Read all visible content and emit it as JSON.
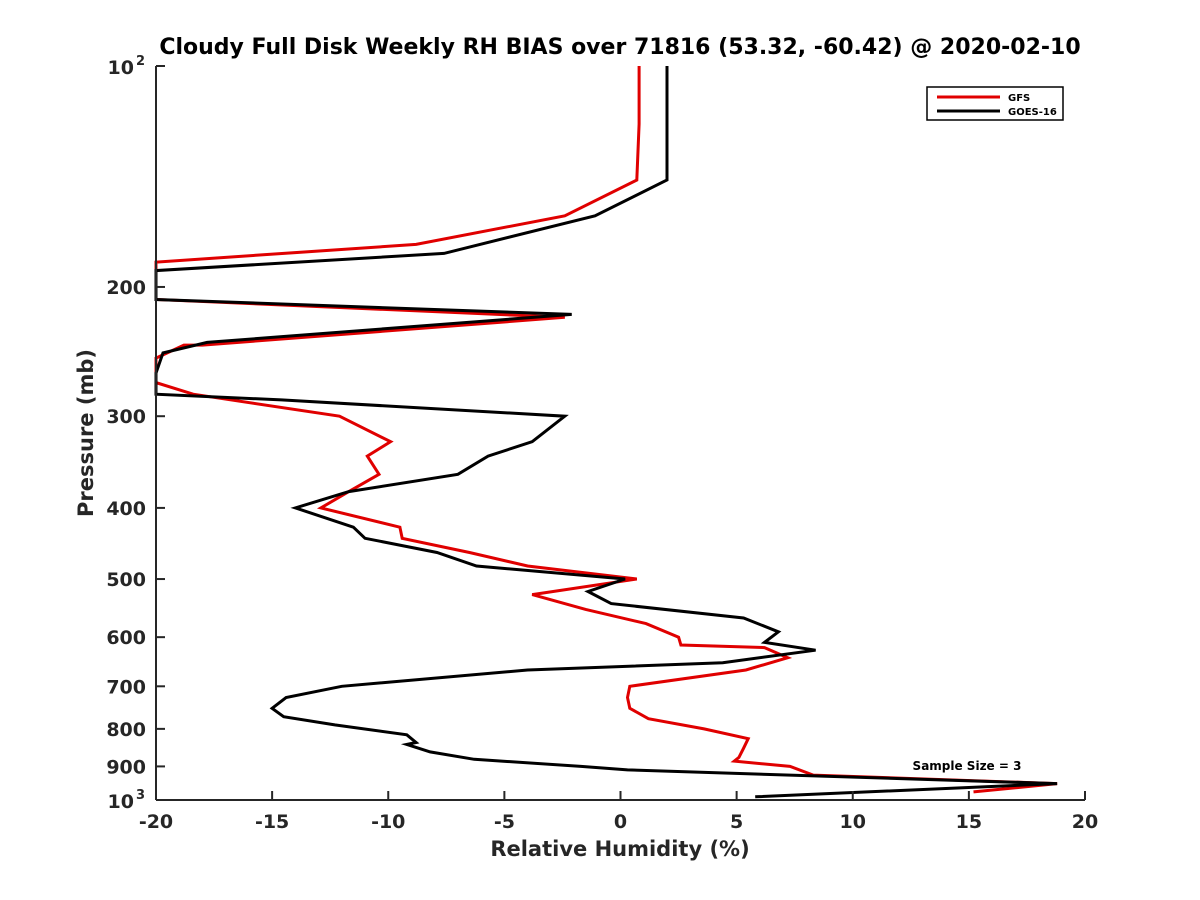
{
  "chart_data": {
    "type": "line",
    "title": "Cloudy Full Disk Weekly RH BIAS over 71816 (53.32, -60.42) @ 2020-02-10",
    "xlabel": "Relative Humidity (%)",
    "ylabel": "Pressure (mb)",
    "xlim": [
      -20,
      20
    ],
    "ylim": [
      100,
      1000
    ],
    "y_scale": "log",
    "y_reversed": true,
    "grid": false,
    "x_ticks": [
      -20,
      -15,
      -10,
      -5,
      0,
      5,
      10,
      15,
      20
    ],
    "x_tick_labels": [
      "-20",
      "-15",
      "-10",
      "-5",
      "0",
      "5",
      "10",
      "15",
      "20"
    ],
    "y_ticks": [
      200,
      300,
      400,
      500,
      600,
      700,
      800,
      900
    ],
    "y_tick_labels": [
      "200",
      "300",
      "400",
      "500",
      "600",
      "700",
      "800",
      "900"
    ],
    "y_end_labels": {
      "top_base": "10",
      "top_exp": "2",
      "bottom_base": "10",
      "bottom_exp": "3"
    },
    "legend": {
      "position": "top-right"
    },
    "annotation": "Sample Size = 3",
    "series": [
      {
        "name": "GFS",
        "color": "#e00000",
        "x": [
          0.8,
          0.8,
          0.7,
          -2.4,
          -8.8,
          -20.0,
          -20.0,
          -2.4,
          -18.0,
          -18.8,
          -20.0,
          -20.0,
          -18.4,
          -12.1,
          -9.9,
          -10.9,
          -10.4,
          -11.7,
          -12.9,
          -9.5,
          -9.4,
          -6.5,
          -4.0,
          0.7,
          -3.8,
          -1.5,
          1.1,
          2.5,
          2.6,
          6.2,
          7.2,
          5.4,
          0.4,
          0.3,
          0.4,
          1.2,
          3.6,
          5.5,
          5.3,
          5.1,
          4.9,
          7.3,
          8.3,
          18.8,
          15.2
        ],
        "y": [
          100,
          120,
          143,
          160,
          175,
          185,
          208,
          220,
          240,
          240,
          250,
          270,
          280,
          300,
          325,
          340,
          360,
          380,
          400,
          425,
          440,
          460,
          480,
          500,
          525,
          550,
          575,
          600,
          615,
          620,
          640,
          665,
          700,
          725,
          750,
          775,
          800,
          825,
          850,
          875,
          885,
          900,
          925,
          950,
          975
        ]
      },
      {
        "name": "GOES-16",
        "color": "#000000",
        "x": [
          2.0,
          2.0,
          2.0,
          -1.1,
          -7.6,
          -20.0,
          -20.0,
          -2.1,
          -17.8,
          -19.7,
          -20.0,
          -20.0,
          -14.6,
          -2.4,
          -3.8,
          -5.7,
          -7.0,
          -11.7,
          -14.0,
          -11.5,
          -11.0,
          -7.9,
          -6.2,
          0.2,
          -1.4,
          -0.4,
          5.3,
          6.8,
          6.2,
          8.4,
          4.4,
          -4.0,
          -12.0,
          -14.4,
          -15.0,
          -14.5,
          -12.3,
          -9.2,
          -8.8,
          -9.2,
          -8.2,
          -6.3,
          -1.7,
          0.3,
          18.8,
          5.8
        ],
        "y": [
          100,
          120,
          143,
          160,
          180,
          190,
          208,
          218,
          238,
          246,
          262,
          280,
          285,
          300,
          325,
          340,
          360,
          380,
          400,
          425,
          440,
          460,
          480,
          500,
          520,
          540,
          565,
          590,
          610,
          625,
          650,
          665,
          700,
          725,
          750,
          770,
          790,
          815,
          835,
          840,
          860,
          880,
          900,
          910,
          950,
          990
        ]
      }
    ]
  }
}
